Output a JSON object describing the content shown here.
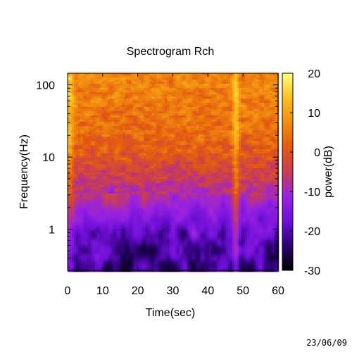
{
  "chart_data": {
    "type": "heatmap",
    "title": "Spectrogram Rch",
    "xlabel": "Time(sec)",
    "ylabel": "Frequency(Hz)",
    "colorbar_label": "power(dB)",
    "x_ticks": [
      0,
      10,
      20,
      30,
      40,
      50,
      60
    ],
    "x_tick_labels": [
      "0",
      "10",
      "20",
      "30",
      "40",
      "50",
      "60"
    ],
    "xlim": [
      0,
      60
    ],
    "y_scale": "log",
    "y_ticks": [
      1,
      10,
      100
    ],
    "y_tick_labels": [
      "1",
      "10",
      "100"
    ],
    "ylim": [
      0.27,
      145
    ],
    "colorbar_ticks": [
      20,
      10,
      0,
      -10,
      -20,
      -30
    ],
    "colorbar_tick_labels": [
      "20",
      "10",
      "0",
      "-10",
      "-20",
      "-30"
    ],
    "color_range": [
      -30,
      20
    ],
    "colormap": [
      "#000000",
      "#2a0070",
      "#6f0fd8",
      "#9a22e0",
      "#c83c54",
      "#e35a10",
      "#f28e10",
      "#ffc020",
      "#ffff80"
    ],
    "power_profile": {
      "frequency_hz": [
        0.3,
        0.6,
        1,
        2,
        3,
        5,
        10,
        20,
        50,
        100,
        145
      ],
      "typical_power_db": [
        -22,
        -20,
        -17,
        -12,
        -8,
        -5,
        0,
        3,
        5,
        6,
        6
      ]
    },
    "vertical_features": [
      {
        "time_sec": 0.5,
        "description": "bright low-time onset"
      },
      {
        "time_sec": 48,
        "description": "broadband transient"
      }
    ]
  },
  "footer": {
    "date": "23/06/09"
  }
}
